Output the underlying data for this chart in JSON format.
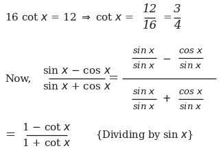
{
  "background_color": "#ffffff",
  "text_color": "#1a1a1a",
  "fs": 11
}
